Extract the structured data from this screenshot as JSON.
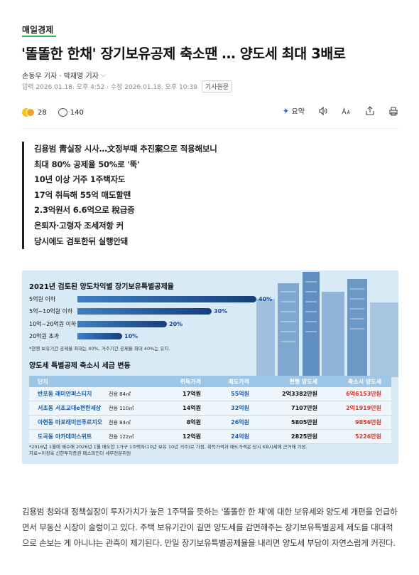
{
  "press": "매일경제",
  "headline": "'똘똘한 한채' 장기보유공제 축소땐 … 양도세 최대 3배로",
  "byline": "손동우 기자 · 박재영 기자",
  "meta": {
    "timestamp": "입력 2026.01.18. 오후 4:52 · 수정 2026.01.18. 오후 10:39",
    "original_button": "기사원문"
  },
  "toolbar": {
    "reaction_count": "28",
    "comment_count": "140",
    "summary_label": "요약"
  },
  "subheads": [
    "김용범 靑실장 시사…文정부때 추진案으로 적용해보니",
    "최대 80% 공제율 50%로 '뚝'",
    "10년 이상 거주 1주택자도",
    "17억 취득해 55억 매도할땐",
    "2.3억원서 6.6억으로 稅급증",
    "은퇴자·고령자 조세저항 커",
    "당시에도 검토한뒤 실행안돼"
  ],
  "figure": {
    "title": "2021년 검토된 양도차익별 장기보유특별공제율",
    "note1": "*현행 보유기간 공제율 최대는 40%, 거주기간 공제율 최대 40%는 유지.",
    "title2": "양도세 특별공제 축소시 세금 변동",
    "note2_line1": "*2016년 1월에 매수해 2026년 1월 매도한 1가구 1주택자(10년 보유 10년 거주)로 가정, 취득가격과 매도가격은 당시 KB시세에 근거해 가정.",
    "note2_line2": "자료=이정옥 신한투자증권 패스파인더 세무전문위원"
  },
  "chart_data": {
    "type": "bar",
    "title": "2021년 검토된 양도차익별 장기보유특별공제율",
    "categories": [
      "5억원 이하",
      "5억~10억원 이하",
      "10억~20억원 이하",
      "20억원 초과"
    ],
    "values": [
      40,
      30,
      20,
      10
    ],
    "value_labels": [
      "40%",
      "30%",
      "20%",
      "10%"
    ],
    "xlim": [
      0,
      40
    ]
  },
  "table": {
    "headers": [
      "단지",
      "취득가격",
      "매도가격",
      "현행 양도세",
      "축소시 양도세"
    ],
    "rows": [
      {
        "name": "반포동 래미안퍼스티지",
        "size": "전용 84㎡",
        "buy": "17억원",
        "sell": "55억원",
        "current": "2억3382만원",
        "reduced": "6억6153만원"
      },
      {
        "name": "서초동 서초교대e편한세상",
        "size": "전용 110㎡",
        "buy": "14억원",
        "sell": "32억원",
        "current": "7107만원",
        "reduced": "2억1919만원"
      },
      {
        "name": "아현동 마포래미안푸르지오",
        "size": "전용 84㎡",
        "buy": "8억원",
        "sell": "26억원",
        "current": "5805만원",
        "reduced": "9856만원"
      },
      {
        "name": "도곡동 아카데미스위트",
        "size": "전용 122㎡",
        "buy": "12억원",
        "sell": "24억원",
        "current": "2825만원",
        "reduced": "5226만원"
      }
    ]
  },
  "body_text": "김용범 청와대 정책실장이 투자가치가 높은 1주택을 뜻하는 '똘똘한 한 채'에 대한 보유세와 양도세 개편을 언급하면서 부동산 시장이 술렁이고 있다. 주택 보유기간이 길면 양도세를 감면해주는 장기보유특별공제 제도를 대대적으로 손보는 게 아니냐는 관측이 제기된다. 만일 장기보유특별공제율을 내리면 양도세 부담이 자연스럽게 커진다.",
  "colors": {
    "accent_green": "#2bb24c",
    "figure_bg": "#d9eaf7",
    "bar_blue": "#1a4d8f",
    "reduced_red": "#d43b2c"
  }
}
